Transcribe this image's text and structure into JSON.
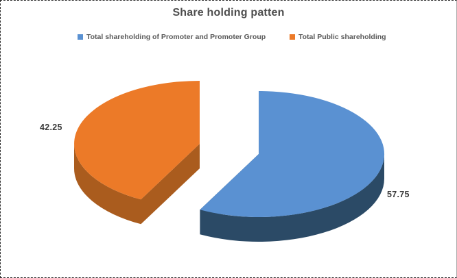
{
  "chart": {
    "title": "Share holding patten"
  },
  "chart_data": {
    "type": "pie",
    "style": "3d-exploded",
    "title": "Share holding patten",
    "start_angle_deg": -90,
    "direction": "clockwise",
    "legend_position": "top",
    "series": [
      {
        "name": "Total shareholding of Promoter and Promoter Group",
        "value": 57.75,
        "label": "57.75",
        "color": "#5A91D2",
        "side_color": "#2B4A66"
      },
      {
        "name": "Total Public shareholding",
        "value": 42.25,
        "label": "42.25",
        "color": "#EC7A28",
        "side_color": "#AA5C1E"
      }
    ]
  }
}
